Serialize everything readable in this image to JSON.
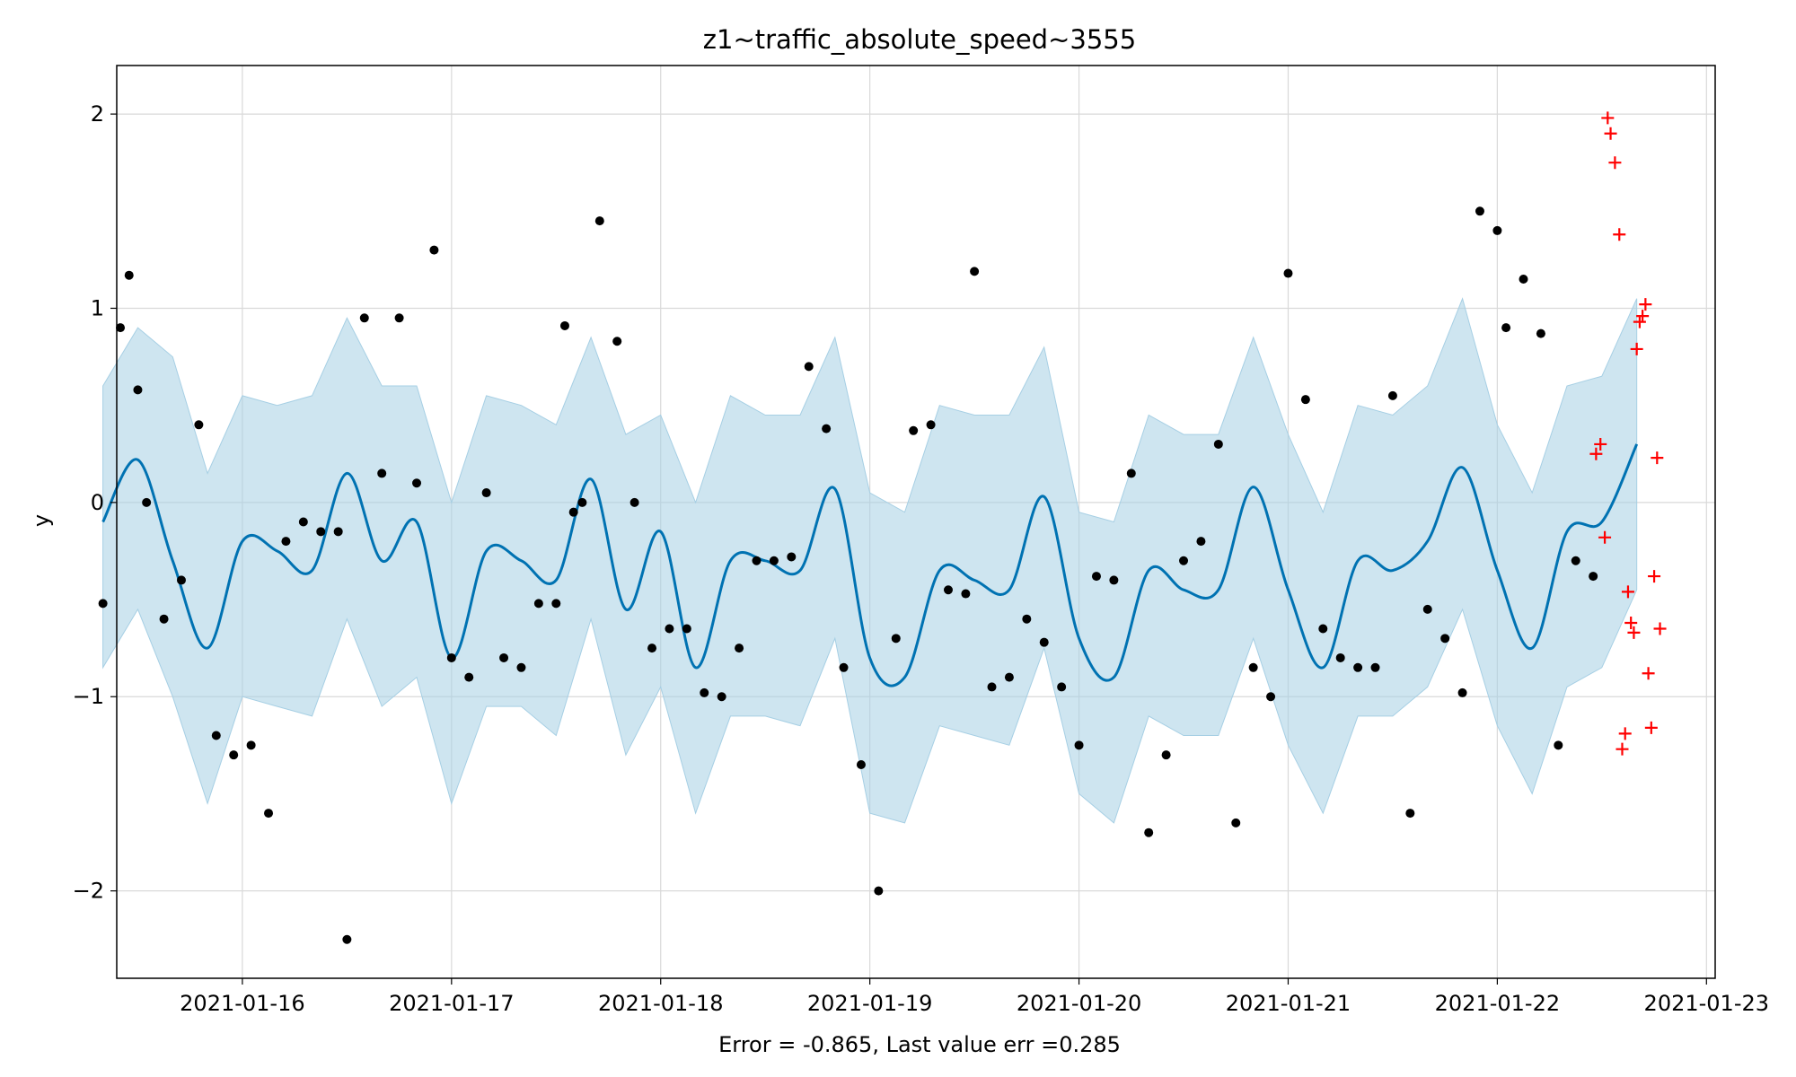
{
  "chart_data": {
    "type": "line",
    "title": "z1~traffic_absolute_speed~3555",
    "xlabel": "Error = -0.865, Last value err =0.285",
    "ylabel": "y",
    "x_ticks": [
      "2021-01-16",
      "2021-01-17",
      "2021-01-18",
      "2021-01-19",
      "2021-01-20",
      "2021-01-21",
      "2021-01-22",
      "2021-01-23"
    ],
    "y_ticks": [
      "−2",
      "−1",
      "0",
      "1",
      "2"
    ],
    "xlim": [
      "2021-01-15 09:35",
      "2021-01-23 01:00"
    ],
    "ylim": [
      -2.45,
      2.25
    ],
    "grid": true,
    "colors": {
      "forecast": "#0072b2",
      "band": "#a6cfe4",
      "observed": "#000000",
      "holdout": "#ff0000"
    },
    "series": [
      {
        "role": "forecast",
        "x": [
          "2021-01-15 08:00",
          "2021-01-15 12:00",
          "2021-01-15 16:00",
          "2021-01-15 20:00",
          "2021-01-16 00:00",
          "2021-01-16 04:00",
          "2021-01-16 08:00",
          "2021-01-16 12:00",
          "2021-01-16 16:00",
          "2021-01-16 20:00",
          "2021-01-17 00:00",
          "2021-01-17 04:00",
          "2021-01-17 08:00",
          "2021-01-17 12:00",
          "2021-01-17 16:00",
          "2021-01-17 20:00",
          "2021-01-18 00:00",
          "2021-01-18 04:00",
          "2021-01-18 08:00",
          "2021-01-18 12:00",
          "2021-01-18 16:00",
          "2021-01-18 20:00",
          "2021-01-19 00:00",
          "2021-01-19 04:00",
          "2021-01-19 08:00",
          "2021-01-19 12:00",
          "2021-01-19 16:00",
          "2021-01-19 20:00",
          "2021-01-20 00:00",
          "2021-01-20 04:00",
          "2021-01-20 08:00",
          "2021-01-20 12:00",
          "2021-01-20 16:00",
          "2021-01-20 20:00",
          "2021-01-21 00:00",
          "2021-01-21 04:00",
          "2021-01-21 08:00",
          "2021-01-21 12:00",
          "2021-01-21 16:00",
          "2021-01-21 20:00",
          "2021-01-22 00:00",
          "2021-01-22 04:00",
          "2021-01-22 08:00",
          "2021-01-22 12:00",
          "2021-01-22 16:00"
        ],
        "y": [
          -0.1,
          0.22,
          -0.3,
          -0.75,
          -0.2,
          -0.25,
          -0.35,
          0.15,
          -0.3,
          -0.1,
          -0.8,
          -0.25,
          -0.3,
          -0.4,
          0.12,
          -0.55,
          -0.15,
          -0.85,
          -0.3,
          -0.3,
          -0.35,
          0.07,
          -0.8,
          -0.9,
          -0.35,
          -0.4,
          -0.45,
          0.03,
          -0.7,
          -0.9,
          -0.35,
          -0.45,
          -0.45,
          0.08,
          -0.45,
          -0.85,
          -0.3,
          -0.35,
          -0.2,
          0.18,
          -0.35,
          -0.75,
          -0.15,
          -0.1,
          0.3
        ]
      },
      {
        "role": "uncertainty-band",
        "x": [
          "2021-01-15 08:00",
          "2021-01-15 12:00",
          "2021-01-15 16:00",
          "2021-01-15 20:00",
          "2021-01-16 00:00",
          "2021-01-16 04:00",
          "2021-01-16 08:00",
          "2021-01-16 12:00",
          "2021-01-16 16:00",
          "2021-01-16 20:00",
          "2021-01-17 00:00",
          "2021-01-17 04:00",
          "2021-01-17 08:00",
          "2021-01-17 12:00",
          "2021-01-17 16:00",
          "2021-01-17 20:00",
          "2021-01-18 00:00",
          "2021-01-18 04:00",
          "2021-01-18 08:00",
          "2021-01-18 12:00",
          "2021-01-18 16:00",
          "2021-01-18 20:00",
          "2021-01-19 00:00",
          "2021-01-19 04:00",
          "2021-01-19 08:00",
          "2021-01-19 12:00",
          "2021-01-19 16:00",
          "2021-01-19 20:00",
          "2021-01-20 00:00",
          "2021-01-20 04:00",
          "2021-01-20 08:00",
          "2021-01-20 12:00",
          "2021-01-20 16:00",
          "2021-01-20 20:00",
          "2021-01-21 00:00",
          "2021-01-21 04:00",
          "2021-01-21 08:00",
          "2021-01-21 12:00",
          "2021-01-21 16:00",
          "2021-01-21 20:00",
          "2021-01-22 00:00",
          "2021-01-22 04:00",
          "2021-01-22 08:00",
          "2021-01-22 12:00",
          "2021-01-22 16:00"
        ],
        "upper": [
          0.6,
          0.9,
          0.75,
          0.15,
          0.55,
          0.5,
          0.55,
          0.95,
          0.6,
          0.6,
          0.0,
          0.55,
          0.5,
          0.4,
          0.85,
          0.35,
          0.45,
          0.0,
          0.55,
          0.45,
          0.45,
          0.85,
          0.05,
          -0.05,
          0.5,
          0.45,
          0.45,
          0.8,
          -0.05,
          -0.1,
          0.45,
          0.35,
          0.35,
          0.85,
          0.35,
          -0.05,
          0.5,
          0.45,
          0.6,
          1.05,
          0.4,
          0.05,
          0.6,
          0.65,
          1.05
        ],
        "lower": [
          -0.85,
          -0.55,
          -1.0,
          -1.55,
          -1.0,
          -1.05,
          -1.1,
          -0.6,
          -1.05,
          -0.9,
          -1.55,
          -1.05,
          -1.05,
          -1.2,
          -0.6,
          -1.3,
          -0.95,
          -1.6,
          -1.1,
          -1.1,
          -1.15,
          -0.7,
          -1.6,
          -1.65,
          -1.15,
          -1.2,
          -1.25,
          -0.75,
          -1.5,
          -1.65,
          -1.1,
          -1.2,
          -1.2,
          -0.7,
          -1.25,
          -1.6,
          -1.1,
          -1.1,
          -0.95,
          -0.55,
          -1.15,
          -1.5,
          -0.95,
          -0.85,
          -0.45
        ]
      },
      {
        "role": "observed",
        "marker": "dot",
        "x": [
          "2021-01-15 08:00",
          "2021-01-15 10:00",
          "2021-01-15 11:00",
          "2021-01-15 12:00",
          "2021-01-15 13:00",
          "2021-01-15 15:00",
          "2021-01-15 17:00",
          "2021-01-15 19:00",
          "2021-01-15 21:00",
          "2021-01-15 23:00",
          "2021-01-16 01:00",
          "2021-01-16 03:00",
          "2021-01-16 05:00",
          "2021-01-16 07:00",
          "2021-01-16 09:00",
          "2021-01-16 11:00",
          "2021-01-16 12:00",
          "2021-01-16 14:00",
          "2021-01-16 16:00",
          "2021-01-16 18:00",
          "2021-01-16 20:00",
          "2021-01-16 22:00",
          "2021-01-17 00:00",
          "2021-01-17 02:00",
          "2021-01-17 04:00",
          "2021-01-17 06:00",
          "2021-01-17 08:00",
          "2021-01-17 10:00",
          "2021-01-17 12:00",
          "2021-01-17 13:00",
          "2021-01-17 14:00",
          "2021-01-17 15:00",
          "2021-01-17 17:00",
          "2021-01-17 19:00",
          "2021-01-17 21:00",
          "2021-01-17 23:00",
          "2021-01-18 01:00",
          "2021-01-18 03:00",
          "2021-01-18 05:00",
          "2021-01-18 07:00",
          "2021-01-18 09:00",
          "2021-01-18 11:00",
          "2021-01-18 13:00",
          "2021-01-18 15:00",
          "2021-01-18 17:00",
          "2021-01-18 19:00",
          "2021-01-18 21:00",
          "2021-01-18 23:00",
          "2021-01-19 01:00",
          "2021-01-19 03:00",
          "2021-01-19 05:00",
          "2021-01-19 07:00",
          "2021-01-19 09:00",
          "2021-01-19 11:00",
          "2021-01-19 12:00",
          "2021-01-19 14:00",
          "2021-01-19 16:00",
          "2021-01-19 18:00",
          "2021-01-19 20:00",
          "2021-01-19 22:00",
          "2021-01-20 00:00",
          "2021-01-20 02:00",
          "2021-01-20 04:00",
          "2021-01-20 06:00",
          "2021-01-20 08:00",
          "2021-01-20 10:00",
          "2021-01-20 12:00",
          "2021-01-20 14:00",
          "2021-01-20 16:00",
          "2021-01-20 18:00",
          "2021-01-20 20:00",
          "2021-01-20 22:00",
          "2021-01-21 00:00",
          "2021-01-21 02:00",
          "2021-01-21 04:00",
          "2021-01-21 06:00",
          "2021-01-21 08:00",
          "2021-01-21 10:00",
          "2021-01-21 12:00",
          "2021-01-21 14:00",
          "2021-01-21 16:00",
          "2021-01-21 18:00",
          "2021-01-21 20:00",
          "2021-01-21 22:00",
          "2021-01-22 00:00",
          "2021-01-22 01:00",
          "2021-01-22 03:00",
          "2021-01-22 05:00",
          "2021-01-22 07:00",
          "2021-01-22 09:00",
          "2021-01-22 11:00"
        ],
        "y": [
          -0.52,
          0.9,
          1.17,
          0.58,
          0.0,
          -0.6,
          -0.4,
          0.4,
          -1.2,
          -1.3,
          -1.25,
          -1.6,
          -0.2,
          -0.1,
          -0.15,
          -0.15,
          -2.25,
          0.95,
          0.15,
          0.95,
          0.1,
          1.3,
          -0.8,
          -0.9,
          0.05,
          -0.8,
          -0.85,
          -0.52,
          -0.52,
          0.91,
          -0.05,
          0.0,
          1.45,
          0.83,
          0.0,
          -0.75,
          -0.65,
          -0.65,
          -0.98,
          -1.0,
          -0.75,
          -0.3,
          -0.3,
          -0.28,
          0.7,
          0.38,
          -0.85,
          -1.35,
          -2.0,
          -0.7,
          0.37,
          0.4,
          -0.45,
          -0.47,
          1.19,
          -0.95,
          -0.9,
          -0.6,
          -0.72,
          -0.95,
          -1.25,
          -0.38,
          -0.4,
          0.15,
          -1.7,
          -1.3,
          -0.3,
          -0.2,
          0.3,
          -1.65,
          -0.85,
          -1.0,
          1.18,
          0.53,
          -0.65,
          -0.8,
          -0.85,
          -0.85,
          0.55,
          -1.6,
          -0.55,
          -0.7,
          -0.98,
          1.5,
          1.4,
          0.9,
          1.15,
          0.87,
          -1.25,
          -0.3,
          -0.38
        ]
      },
      {
        "role": "holdout",
        "marker": "plus",
        "x": [
          "2021-01-22 11:20",
          "2021-01-22 11:50",
          "2021-01-22 12:20",
          "2021-01-22 12:40",
          "2021-01-22 13:00",
          "2021-01-22 13:30",
          "2021-01-22 14:00",
          "2021-01-22 14:20",
          "2021-01-22 14:40",
          "2021-01-22 15:00",
          "2021-01-22 15:20",
          "2021-01-22 15:40",
          "2021-01-22 16:00",
          "2021-01-22 16:20",
          "2021-01-22 16:40",
          "2021-01-22 17:00",
          "2021-01-22 17:20",
          "2021-01-22 17:40",
          "2021-01-22 18:00",
          "2021-01-22 18:20",
          "2021-01-22 18:40"
        ],
        "y": [
          0.25,
          0.3,
          -0.18,
          1.98,
          1.9,
          1.75,
          1.38,
          -1.27,
          -1.19,
          -0.46,
          -0.62,
          -0.67,
          0.79,
          0.93,
          0.96,
          1.02,
          -0.88,
          -1.16,
          -0.38,
          0.23,
          -0.65
        ]
      }
    ]
  }
}
